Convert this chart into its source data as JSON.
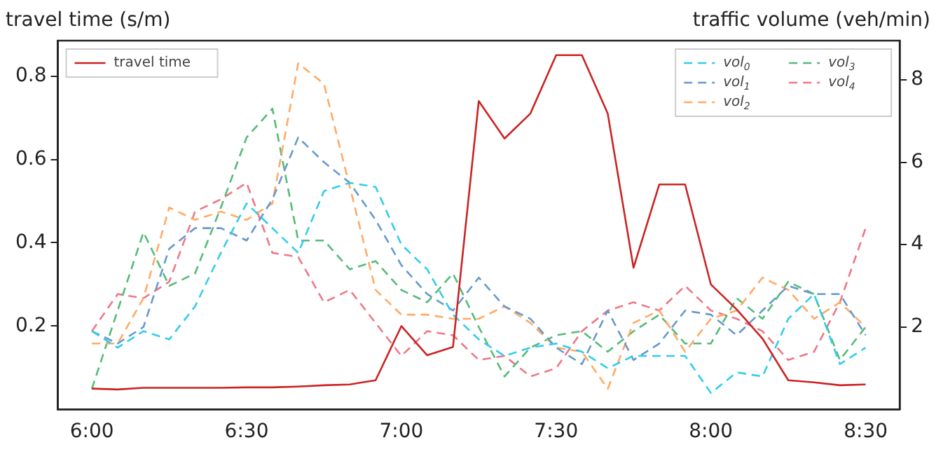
{
  "chart_data": {
    "type": "line",
    "ylabel": "travel time (s/m)",
    "y2label": "traffic volume (veh/min)",
    "x": [
      6,
      6.0833,
      6.1667,
      6.25,
      6.3333,
      6.4167,
      6.5,
      6.5833,
      6.6667,
      6.75,
      6.8333,
      6.9167,
      7,
      7.0833,
      7.1667,
      7.25,
      7.3333,
      7.4167,
      7.5,
      7.5833,
      7.6667,
      7.75,
      7.8333,
      7.9167,
      8,
      8.0833,
      8.1667,
      8.25,
      8.3333,
      8.4167,
      8.5
    ],
    "series": [
      {
        "name": "travel time",
        "color": "#cc2222",
        "line_style": "solid",
        "values": [
          0.05,
          0.048,
          0.052,
          0.052,
          0.052,
          0.052,
          0.053,
          0.053,
          0.055,
          0.058,
          0.06,
          0.07,
          0.2,
          0.13,
          0.15,
          0.74,
          0.65,
          0.71,
          0.85,
          0.85,
          0.71,
          0.34,
          0.54,
          0.54,
          0.3,
          0.24,
          0.17,
          0.07,
          0.065,
          0.058,
          0.06
        ]
      },
      {
        "name": "vol$_{0}$",
        "axis": "y2",
        "color": "#33ccee",
        "line_style": "dashed",
        "values": [
          1.9,
          1.5,
          1.9,
          1.7,
          2.5,
          3.8,
          5.0,
          4.4,
          3.8,
          5.3,
          5.5,
          5.4,
          4.0,
          3.4,
          2.3,
          1.7,
          1.3,
          1.5,
          1.6,
          1.4,
          1.0,
          1.3,
          1.3,
          1.3,
          0.4,
          0.9,
          0.8,
          2.2,
          2.8,
          1.1,
          1.5
        ]
      },
      {
        "name": "vol$_{1}$",
        "axis": "y2",
        "color": "#6699cc",
        "line_style": "dashed",
        "values": [
          1.9,
          1.6,
          2.0,
          3.9,
          4.4,
          4.4,
          4.1,
          5.1,
          6.6,
          6.0,
          5.5,
          4.6,
          3.5,
          2.8,
          2.4,
          3.2,
          2.5,
          2.2,
          1.5,
          1.1,
          2.4,
          1.2,
          1.6,
          2.4,
          2.3,
          1.8,
          2.4,
          3.0,
          2.8,
          2.8,
          1.8
        ]
      },
      {
        "name": "vol$_{2}$",
        "axis": "y2",
        "color": "#ffaa66",
        "line_style": "dashed",
        "values": [
          1.6,
          1.6,
          2.7,
          4.9,
          4.6,
          4.8,
          4.6,
          5.0,
          8.4,
          7.9,
          5.4,
          2.9,
          2.3,
          2.3,
          2.2,
          2.2,
          2.5,
          2.1,
          1.5,
          1.4,
          0.5,
          2.1,
          2.4,
          1.4,
          2.2,
          2.4,
          3.2,
          2.9,
          2.2,
          2.6,
          2.0
        ]
      },
      {
        "name": "vol$_{3}$",
        "axis": "y2",
        "color": "#55bb77",
        "line_style": "dashed",
        "values": [
          0.5,
          2.4,
          4.3,
          3.0,
          3.3,
          4.9,
          6.6,
          7.3,
          4.1,
          4.1,
          3.4,
          3.6,
          2.9,
          2.6,
          3.3,
          2.0,
          0.8,
          1.5,
          1.8,
          1.9,
          1.4,
          1.9,
          2.3,
          1.6,
          1.6,
          2.7,
          2.2,
          3.1,
          2.8,
          1.2,
          2.0
        ]
      },
      {
        "name": "vol$_{4}$",
        "axis": "y2",
        "color": "#ee7788",
        "line_style": "dashed",
        "values": [
          1.9,
          2.8,
          2.7,
          3.1,
          4.8,
          5.1,
          5.5,
          3.8,
          3.7,
          2.6,
          2.9,
          2.1,
          1.3,
          1.9,
          1.8,
          1.2,
          1.3,
          0.8,
          1.0,
          1.9,
          2.4,
          2.6,
          2.4,
          3.0,
          2.4,
          2.2,
          1.9,
          1.2,
          1.4,
          2.6,
          4.4
        ]
      }
    ],
    "xlim": [
      5.89,
      8.61
    ],
    "xticks": [
      {
        "value": 6,
        "label": "6:00"
      },
      {
        "value": 6.5,
        "label": "6:30"
      },
      {
        "value": 7,
        "label": "7:00"
      },
      {
        "value": 7.5,
        "label": "7:30"
      },
      {
        "value": 8,
        "label": "8:00"
      },
      {
        "value": 8.5,
        "label": "8:30"
      }
    ],
    "ylim": [
      0,
      0.885
    ],
    "yticks": [
      0.2,
      0.4,
      0.6,
      0.8
    ],
    "y2lim": [
      0,
      8.95
    ],
    "y2ticks": [
      2,
      4,
      6,
      8
    ],
    "grid": false,
    "legend": "top right",
    "marker": "none"
  }
}
